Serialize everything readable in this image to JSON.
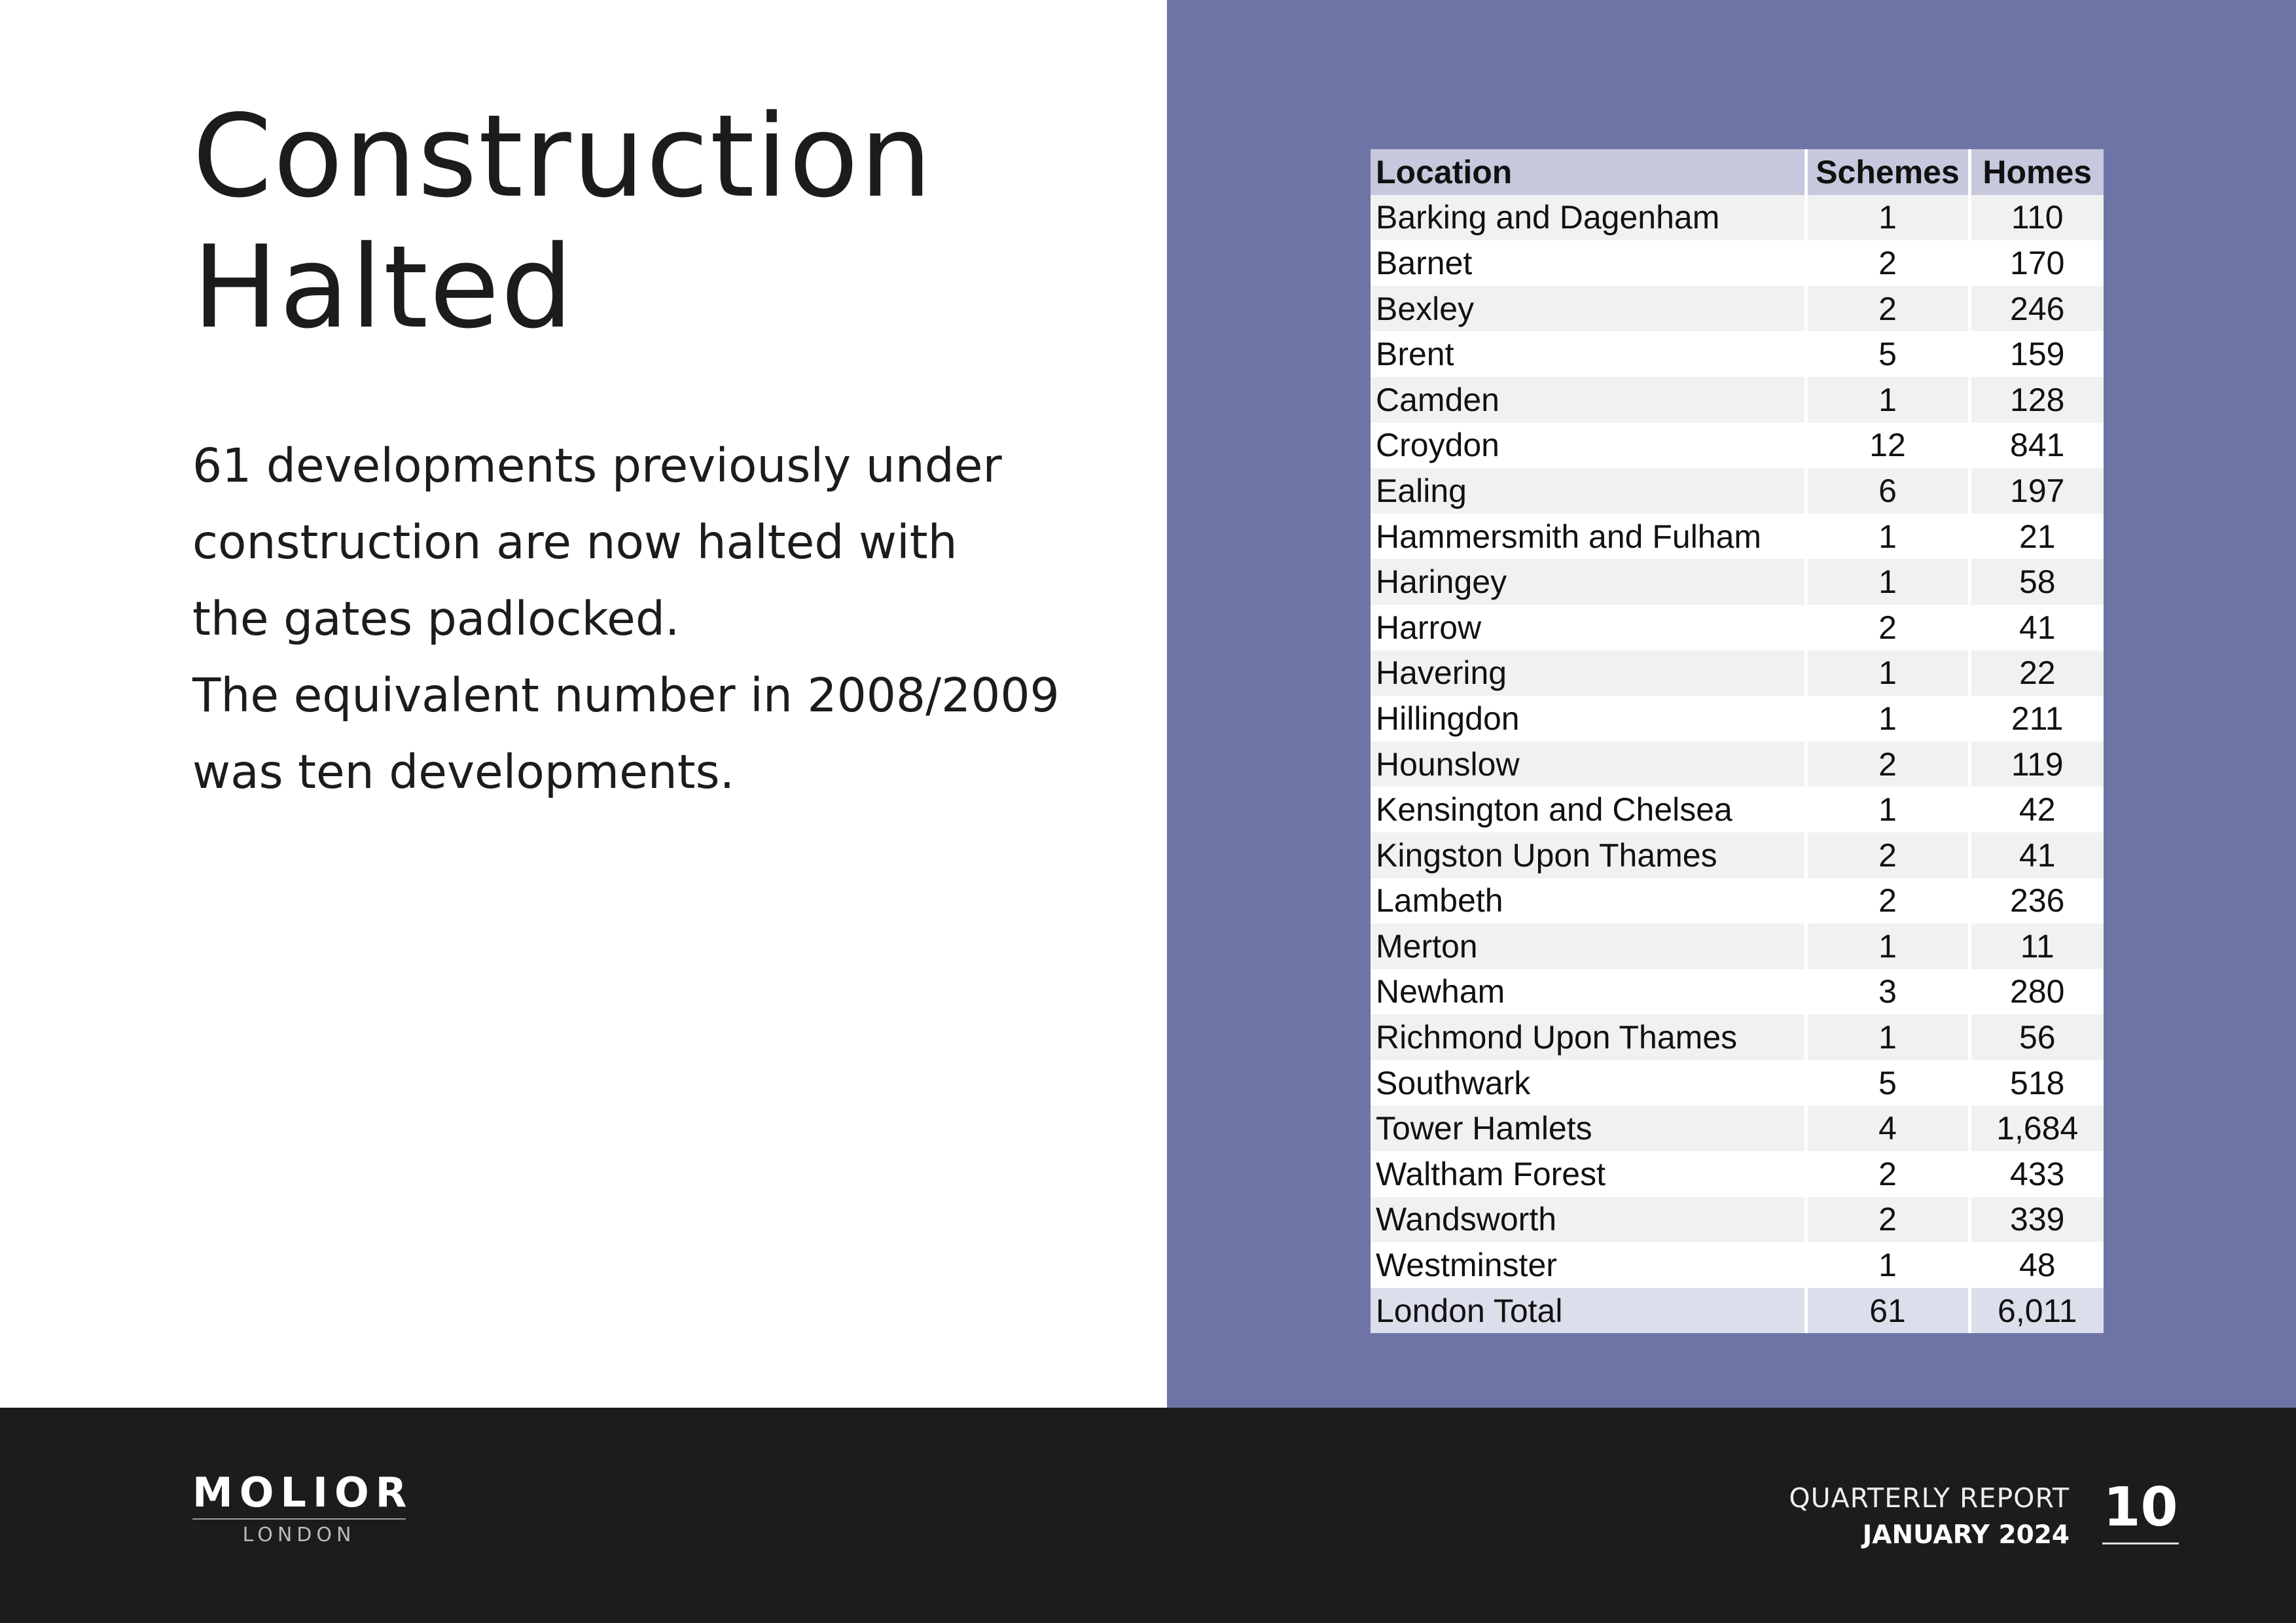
{
  "colors": {
    "accent_panel": "#6e75a6",
    "footer": "#1c1c1c",
    "table_header": "#c6c9dd",
    "table_total": "#dcdeeb"
  },
  "title": {
    "line1": "Construction",
    "line2": "Halted"
  },
  "body": {
    "lines": [
      "61 developments previously under",
      "construction are now halted with",
      "the gates padlocked.",
      "The equivalent number in 2008/2009",
      "was ten developments."
    ]
  },
  "table": {
    "headers": [
      "Location",
      "Schemes",
      "Homes"
    ],
    "rows": [
      [
        "Barking and Dagenham",
        "1",
        "110"
      ],
      [
        "Barnet",
        "2",
        "170"
      ],
      [
        "Bexley",
        "2",
        "246"
      ],
      [
        "Brent",
        "5",
        "159"
      ],
      [
        "Camden",
        "1",
        "128"
      ],
      [
        "Croydon",
        "12",
        "841"
      ],
      [
        "Ealing",
        "6",
        "197"
      ],
      [
        "Hammersmith and Fulham",
        "1",
        "21"
      ],
      [
        "Haringey",
        "1",
        "58"
      ],
      [
        "Harrow",
        "2",
        "41"
      ],
      [
        "Havering",
        "1",
        "22"
      ],
      [
        "Hillingdon",
        "1",
        "211"
      ],
      [
        "Hounslow",
        "2",
        "119"
      ],
      [
        "Kensington and Chelsea",
        "1",
        "42"
      ],
      [
        "Kingston Upon Thames",
        "2",
        "41"
      ],
      [
        "Lambeth",
        "2",
        "236"
      ],
      [
        "Merton",
        "1",
        "11"
      ],
      [
        "Newham",
        "3",
        "280"
      ],
      [
        "Richmond Upon Thames",
        "1",
        "56"
      ],
      [
        "Southwark",
        "5",
        "518"
      ],
      [
        "Tower Hamlets",
        "4",
        "1,684"
      ],
      [
        "Waltham Forest",
        "2",
        "433"
      ],
      [
        "Wandsworth",
        "2",
        "339"
      ],
      [
        "Westminster",
        "1",
        "48"
      ]
    ],
    "total": [
      "London Total",
      "61",
      "6,011"
    ]
  },
  "footer": {
    "logo_name": "MOLIOR",
    "logo_sub": "LONDON",
    "report_label": "QUARTERLY REPORT",
    "report_date": "JANUARY 2024",
    "page_number": "10"
  }
}
